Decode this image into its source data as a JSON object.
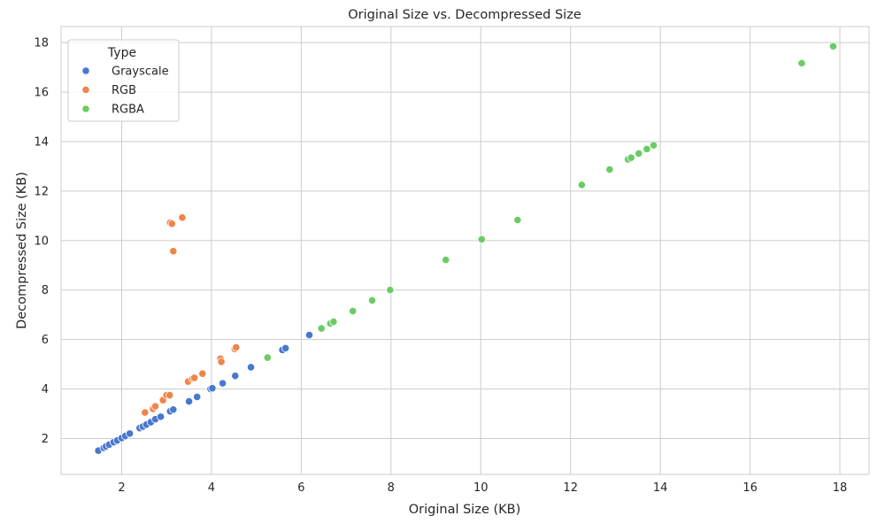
{
  "chart_data": {
    "type": "scatter",
    "title": "Original Size vs. Decompressed Size",
    "xlabel": "Original Size (KB)",
    "ylabel": "Decompressed Size (KB)",
    "xlim": [
      0.65,
      18.65
    ],
    "ylim": [
      0.55,
      18.65
    ],
    "xticks": [
      2,
      4,
      6,
      8,
      10,
      12,
      14,
      16,
      18
    ],
    "yticks": [
      2,
      4,
      6,
      8,
      10,
      12,
      14,
      16,
      18
    ],
    "grid": true,
    "legend": {
      "title": "Type",
      "placement": "top-left"
    },
    "series": [
      {
        "name": "Grayscale",
        "color": "#4878d0",
        "points": [
          [
            1.48,
            1.51
          ],
          [
            1.6,
            1.62
          ],
          [
            1.65,
            1.68
          ],
          [
            1.72,
            1.75
          ],
          [
            1.82,
            1.85
          ],
          [
            1.9,
            1.92
          ],
          [
            2.0,
            2.02
          ],
          [
            2.08,
            2.1
          ],
          [
            2.18,
            2.2
          ],
          [
            2.4,
            2.42
          ],
          [
            2.47,
            2.48
          ],
          [
            2.55,
            2.56
          ],
          [
            2.65,
            2.66
          ],
          [
            2.75,
            2.78
          ],
          [
            2.87,
            2.88
          ],
          [
            3.08,
            3.1
          ],
          [
            3.15,
            3.17
          ],
          [
            3.5,
            3.5
          ],
          [
            3.68,
            3.68
          ],
          [
            3.98,
            4.0
          ],
          [
            4.02,
            4.03
          ],
          [
            4.25,
            4.23
          ],
          [
            4.53,
            4.53
          ],
          [
            4.88,
            4.88
          ],
          [
            5.58,
            5.58
          ],
          [
            5.65,
            5.65
          ],
          [
            6.18,
            6.18
          ]
        ]
      },
      {
        "name": "RGB",
        "color": "#ee854a",
        "points": [
          [
            2.52,
            3.05
          ],
          [
            2.7,
            3.2
          ],
          [
            2.75,
            3.3
          ],
          [
            2.92,
            3.55
          ],
          [
            3.0,
            3.75
          ],
          [
            3.07,
            3.75
          ],
          [
            3.08,
            10.72
          ],
          [
            3.12,
            10.68
          ],
          [
            3.15,
            9.57
          ],
          [
            3.35,
            10.93
          ],
          [
            3.48,
            4.3
          ],
          [
            3.58,
            4.42
          ],
          [
            3.62,
            4.45
          ],
          [
            3.8,
            4.62
          ],
          [
            4.2,
            5.22
          ],
          [
            4.22,
            5.1
          ],
          [
            4.52,
            5.62
          ],
          [
            4.55,
            5.68
          ]
        ]
      },
      {
        "name": "RGBA",
        "color": "#6acc64",
        "points": [
          [
            5.25,
            5.27
          ],
          [
            6.45,
            6.45
          ],
          [
            6.65,
            6.65
          ],
          [
            6.72,
            6.72
          ],
          [
            7.15,
            7.15
          ],
          [
            7.58,
            7.58
          ],
          [
            7.98,
            8.0
          ],
          [
            9.22,
            9.22
          ],
          [
            10.02,
            10.05
          ],
          [
            10.82,
            10.83
          ],
          [
            12.25,
            12.25
          ],
          [
            12.87,
            12.87
          ],
          [
            13.28,
            13.28
          ],
          [
            13.35,
            13.35
          ],
          [
            13.52,
            13.52
          ],
          [
            13.7,
            13.7
          ],
          [
            13.85,
            13.85
          ],
          [
            17.15,
            17.17
          ],
          [
            17.85,
            17.85
          ]
        ]
      }
    ]
  }
}
